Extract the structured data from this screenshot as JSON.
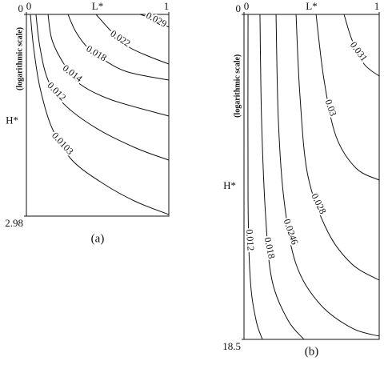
{
  "chart_data": [
    {
      "type": "contour",
      "caption": "(a)",
      "xlabel": "L*",
      "ylabel": "H*",
      "ylabel_note": "(logarithmic scale)",
      "xlim": [
        0,
        1
      ],
      "ylim": [
        0,
        2.98
      ],
      "xticks": [
        0,
        1
      ],
      "yticks": [
        0,
        2.98
      ],
      "y_inverted": true,
      "color": "#111111",
      "series": [
        {
          "name": "0.029",
          "x": [
            0.798,
            0.882,
            0.938,
            1
          ],
          "y": [
            0,
            0.059,
            0.118,
            0.189
          ]
        },
        {
          "name": "0.022",
          "x": [
            0.489,
            0.601,
            0.713,
            0.854,
            1
          ],
          "y": [
            0,
            0.26,
            0.473,
            0.615,
            0.733
          ]
        },
        {
          "name": "0.018",
          "x": [
            0.292,
            0.348,
            0.433,
            0.545,
            0.713,
            1
          ],
          "y": [
            0,
            0.26,
            0.497,
            0.674,
            0.851,
            0.97
          ]
        },
        {
          "name": "0.014",
          "x": [
            0.152,
            0.18,
            0.264,
            0.376,
            0.601,
            1
          ],
          "y": [
            0,
            0.378,
            0.733,
            1.029,
            1.265,
            1.501
          ]
        },
        {
          "name": "0.012",
          "x": [
            0.067,
            0.096,
            0.152,
            0.264,
            0.489,
            0.77,
            1
          ],
          "y": [
            0,
            0.497,
            0.97,
            1.325,
            1.679,
            1.975,
            2.152
          ]
        },
        {
          "name": "0.0103",
          "x": [
            0.028,
            0.051,
            0.096,
            0.18,
            0.32,
            0.545,
            0.77,
            1
          ],
          "y": [
            0,
            0.497,
            1.088,
            1.679,
            2.152,
            2.507,
            2.767,
            2.956
          ]
        }
      ]
    },
    {
      "type": "contour",
      "caption": "(b)",
      "xlabel": "L*",
      "ylabel": "H*",
      "ylabel_note": "(logarithmic scale)",
      "xlim": [
        0,
        1
      ],
      "ylim": [
        0,
        18.5
      ],
      "xticks": [
        0,
        1
      ],
      "yticks": [
        0,
        18.5
      ],
      "y_inverted": true,
      "color": "#111111",
      "series": [
        {
          "name": "0.031",
          "x": [
            0.74,
            0.799,
            0.888,
            1
          ],
          "y": [
            0,
            1.458,
            2.825,
            3.509
          ]
        },
        {
          "name": "0.03",
          "x": [
            0.533,
            0.592,
            0.68,
            0.828,
            1
          ],
          "y": [
            0,
            3.737,
            6.926,
            8.749,
            9.432
          ]
        },
        {
          "name": "0.028",
          "x": [
            0.385,
            0.414,
            0.473,
            0.621,
            0.799,
            1
          ],
          "y": [
            0,
            4.647,
            9.204,
            12.393,
            14.216,
            15.128
          ]
        },
        {
          "name": "0.0246",
          "x": [
            0.237,
            0.254,
            0.296,
            0.385,
            0.562,
            0.799,
            1
          ],
          "y": [
            0,
            6.015,
            10.571,
            14.216,
            16.494,
            17.861,
            18.317
          ]
        },
        {
          "name": "0.018",
          "x": [
            0.118,
            0.13,
            0.16,
            0.207,
            0.325,
            0.444
          ],
          "y": [
            0,
            6.015,
            11.482,
            15.128,
            17.406,
            18.5
          ]
        },
        {
          "name": "0.012",
          "x": [
            0.03,
            0.03,
            0.047,
            0.089,
            0.136
          ],
          "y": [
            0,
            10.571,
            15.128,
            17.406,
            18.5
          ]
        }
      ]
    }
  ]
}
